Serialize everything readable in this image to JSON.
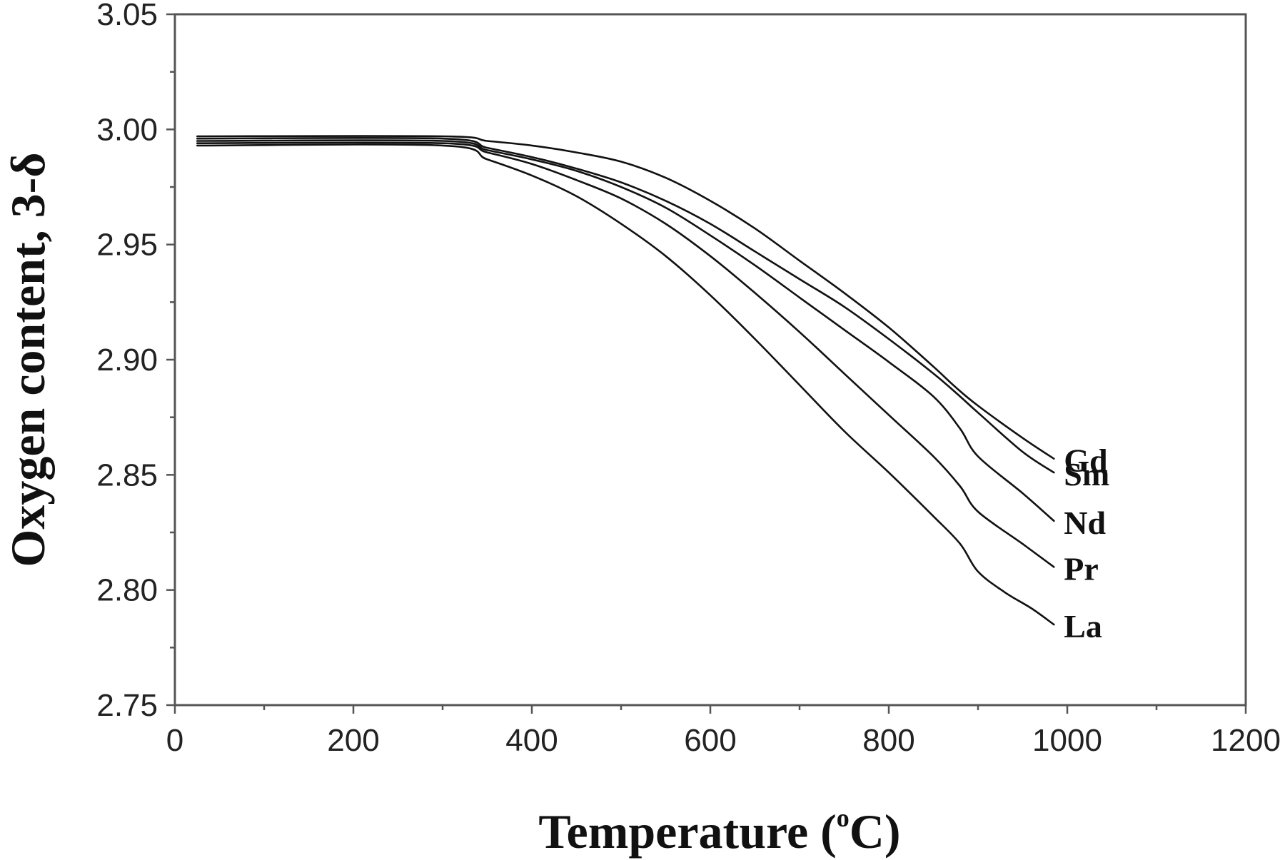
{
  "chart_data": {
    "type": "line",
    "xlabel": "Temperature (",
    "xlabel_sup": "o",
    "xlabel_unit": "C)",
    "ylabel": "Oxygen content, 3-δ",
    "xlim": [
      0,
      1200
    ],
    "ylim": [
      2.75,
      3.05
    ],
    "xticks": [
      0,
      200,
      400,
      600,
      800,
      1000,
      1200
    ],
    "xtick_labels": [
      "0",
      "200",
      "400",
      "600",
      "800",
      "1000",
      "1200"
    ],
    "yticks": [
      2.75,
      2.8,
      2.85,
      2.9,
      2.95,
      3.0,
      3.05
    ],
    "ytick_labels": [
      "2.75",
      "2.80",
      "2.85",
      "2.90",
      "2.95",
      "3.00",
      "3.05"
    ],
    "grid": false,
    "legend": "inline labels at right end of curves",
    "series": [
      {
        "name": "Gd",
        "x": [
          25,
          300,
          350,
          400,
          450,
          500,
          550,
          600,
          650,
          700,
          750,
          800,
          850,
          875,
          900,
          950,
          985
        ],
        "y": [
          2.997,
          2.997,
          2.995,
          2.993,
          2.99,
          2.986,
          2.979,
          2.969,
          2.957,
          2.943,
          2.929,
          2.914,
          2.897,
          2.888,
          2.88,
          2.866,
          2.857
        ]
      },
      {
        "name": "Sm",
        "x": [
          25,
          300,
          350,
          400,
          450,
          500,
          550,
          600,
          650,
          700,
          750,
          800,
          850,
          880,
          900,
          950,
          985
        ],
        "y": [
          2.996,
          2.996,
          2.992,
          2.988,
          2.983,
          2.977,
          2.969,
          2.959,
          2.947,
          2.935,
          2.923,
          2.909,
          2.894,
          2.884,
          2.877,
          2.86,
          2.851
        ]
      },
      {
        "name": "Nd",
        "x": [
          25,
          300,
          350,
          400,
          450,
          500,
          550,
          600,
          650,
          700,
          750,
          800,
          850,
          880,
          900,
          950,
          985
        ],
        "y": [
          2.995,
          2.995,
          2.991,
          2.987,
          2.982,
          2.975,
          2.966,
          2.954,
          2.941,
          2.927,
          2.913,
          2.899,
          2.884,
          2.87,
          2.858,
          2.842,
          2.83
        ]
      },
      {
        "name": "Pr",
        "x": [
          25,
          300,
          350,
          400,
          450,
          500,
          550,
          600,
          650,
          700,
          750,
          800,
          850,
          880,
          900,
          950,
          985
        ],
        "y": [
          2.994,
          2.994,
          2.99,
          2.985,
          2.978,
          2.97,
          2.959,
          2.945,
          2.929,
          2.912,
          2.894,
          2.876,
          2.858,
          2.845,
          2.834,
          2.82,
          2.81
        ]
      },
      {
        "name": "La",
        "x": [
          25,
          300,
          350,
          400,
          450,
          500,
          550,
          600,
          650,
          700,
          750,
          800,
          850,
          880,
          900,
          930,
          960,
          985
        ],
        "y": [
          2.993,
          2.993,
          2.987,
          2.98,
          2.971,
          2.959,
          2.945,
          2.928,
          2.909,
          2.889,
          2.869,
          2.851,
          2.832,
          2.82,
          2.808,
          2.799,
          2.792,
          2.785
        ]
      }
    ]
  }
}
